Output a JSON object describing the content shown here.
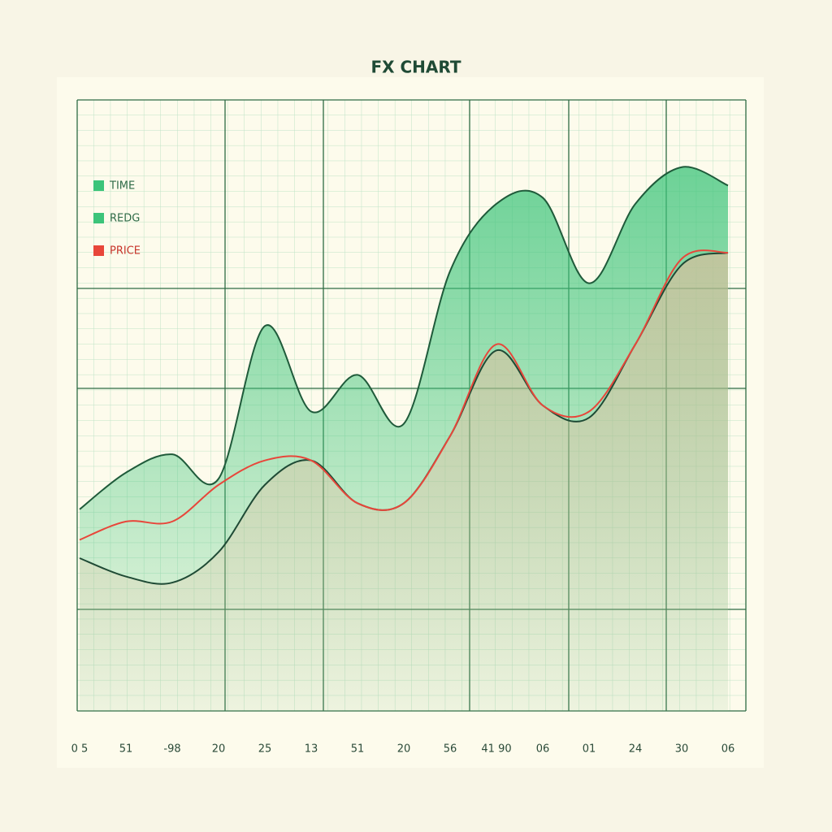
{
  "chart_data": {
    "type": "line",
    "title": "FX CHART",
    "categories": [
      "0 5",
      "51",
      "-98",
      "20",
      "25",
      "13",
      "51",
      "20",
      "56",
      "41 90",
      "06",
      "01",
      "24",
      "30",
      "06"
    ],
    "series": [
      {
        "name": "TIME",
        "color": "#3cc47a",
        "values": [
          33,
          39,
          42,
          38,
          63,
          49,
          55,
          47,
          72,
          83,
          84,
          70,
          83,
          89,
          86
        ]
      },
      {
        "name": "REDG",
        "color": "#3cc47a",
        "values": [
          25,
          22,
          21,
          26,
          37,
          41,
          34,
          34,
          45,
          59,
          50,
          48,
          60,
          73,
          75
        ]
      },
      {
        "name": "PRICE",
        "color": "#e8463a",
        "values": [
          28,
          31,
          31,
          37,
          41,
          41,
          34,
          34,
          45,
          60,
          50,
          49,
          60,
          74,
          75
        ]
      }
    ],
    "ylim": [
      0,
      100
    ],
    "legend": "upper left"
  }
}
